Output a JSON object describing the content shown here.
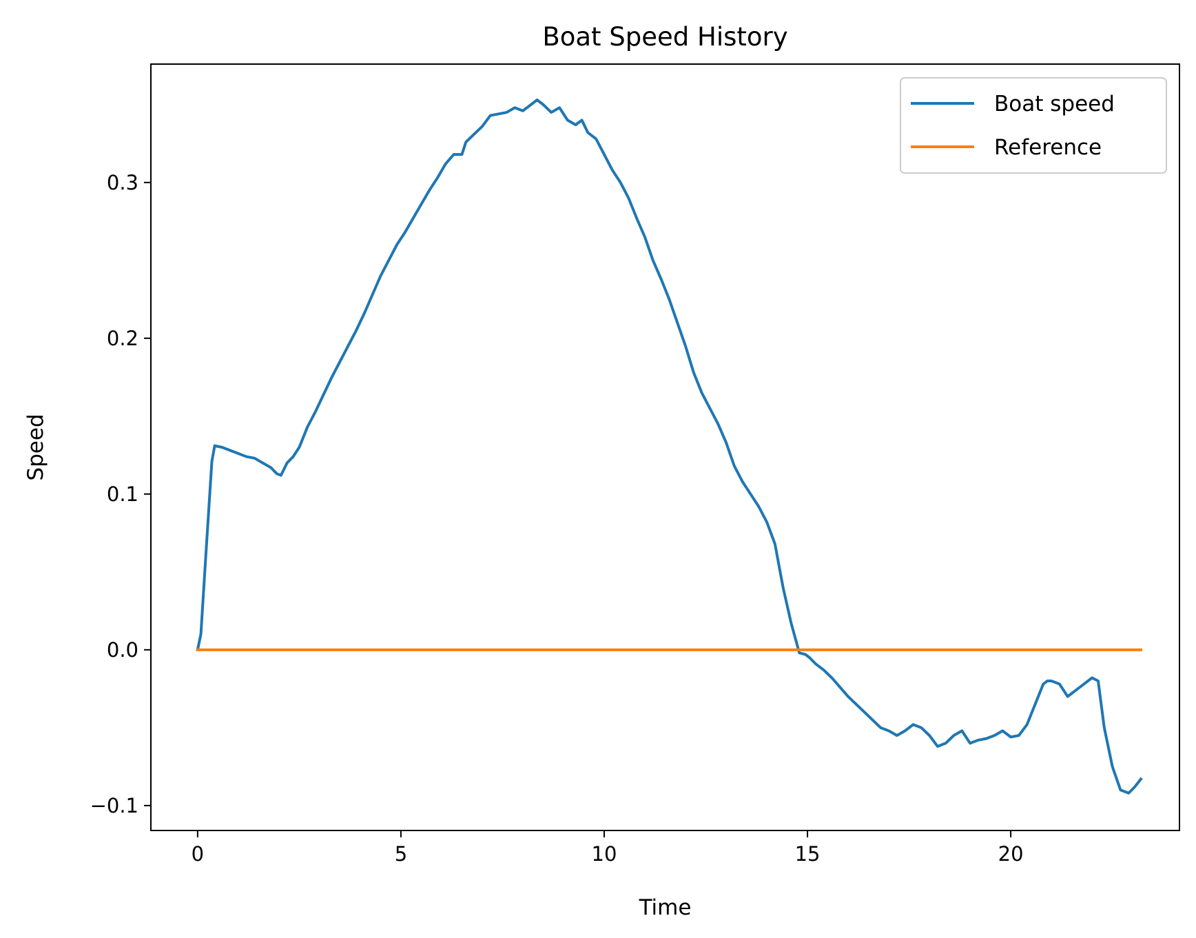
{
  "chart_data": {
    "type": "line",
    "title": "Boat Speed History",
    "xlabel": "Time",
    "ylabel": "Speed",
    "xlim": [
      -1.15,
      24.15
    ],
    "ylim": [
      -0.116,
      0.376
    ],
    "x_ticks": [
      0,
      5,
      10,
      15,
      20
    ],
    "x_tick_labels": [
      "0",
      "5",
      "10",
      "15",
      "20"
    ],
    "y_ticks": [
      -0.1,
      0.0,
      0.1,
      0.2,
      0.3
    ],
    "y_tick_labels": [
      "−0.1",
      "0.0",
      "0.1",
      "0.2",
      "0.3"
    ],
    "grid": false,
    "legend_position": "top-right",
    "series": [
      {
        "name": "Boat speed",
        "color": "#1f77b4",
        "x": [
          0,
          0.08,
          0.2,
          0.35,
          0.42,
          0.6,
          0.8,
          1.0,
          1.2,
          1.4,
          1.6,
          1.8,
          1.95,
          2.05,
          2.2,
          2.35,
          2.5,
          2.7,
          2.9,
          3.1,
          3.3,
          3.5,
          3.7,
          3.9,
          4.1,
          4.3,
          4.5,
          4.7,
          4.9,
          5.1,
          5.3,
          5.5,
          5.7,
          5.9,
          6.1,
          6.3,
          6.5,
          6.6,
          6.8,
          7.0,
          7.2,
          7.4,
          7.6,
          7.8,
          8.0,
          8.2,
          8.35,
          8.5,
          8.7,
          8.9,
          9.1,
          9.3,
          9.45,
          9.6,
          9.8,
          10.0,
          10.2,
          10.4,
          10.6,
          10.8,
          11.0,
          11.2,
          11.4,
          11.6,
          11.8,
          12.0,
          12.2,
          12.4,
          12.6,
          12.8,
          13.0,
          13.2,
          13.4,
          13.6,
          13.8,
          14.0,
          14.2,
          14.4,
          14.6,
          14.8,
          14.95,
          15.05,
          15.2,
          15.4,
          15.6,
          15.8,
          16.0,
          16.2,
          16.4,
          16.6,
          16.8,
          17.0,
          17.2,
          17.4,
          17.6,
          17.8,
          18.0,
          18.2,
          18.4,
          18.6,
          18.8,
          19.0,
          19.2,
          19.4,
          19.6,
          19.8,
          20.0,
          20.2,
          20.4,
          20.6,
          20.8,
          20.9,
          21.0,
          21.2,
          21.4,
          21.6,
          21.8,
          22.0,
          22.15,
          22.3,
          22.5,
          22.7,
          22.9,
          23.05,
          23.2
        ],
        "values": [
          0.0,
          0.01,
          0.06,
          0.121,
          0.131,
          0.13,
          0.128,
          0.126,
          0.124,
          0.123,
          0.12,
          0.117,
          0.113,
          0.112,
          0.12,
          0.124,
          0.13,
          0.143,
          0.153,
          0.164,
          0.175,
          0.185,
          0.195,
          0.205,
          0.216,
          0.228,
          0.24,
          0.25,
          0.26,
          0.268,
          0.277,
          0.286,
          0.295,
          0.303,
          0.312,
          0.318,
          0.318,
          0.326,
          0.331,
          0.336,
          0.343,
          0.344,
          0.345,
          0.348,
          0.346,
          0.35,
          0.353,
          0.35,
          0.345,
          0.348,
          0.34,
          0.337,
          0.34,
          0.332,
          0.328,
          0.318,
          0.308,
          0.3,
          0.29,
          0.277,
          0.265,
          0.25,
          0.238,
          0.225,
          0.21,
          0.195,
          0.178,
          0.165,
          0.155,
          0.145,
          0.133,
          0.118,
          0.108,
          0.1,
          0.092,
          0.082,
          0.068,
          0.04,
          0.017,
          -0.002,
          -0.003,
          -0.005,
          -0.009,
          -0.013,
          -0.018,
          -0.024,
          -0.03,
          -0.035,
          -0.04,
          -0.045,
          -0.05,
          -0.052,
          -0.055,
          -0.052,
          -0.048,
          -0.05,
          -0.055,
          -0.062,
          -0.06,
          -0.055,
          -0.052,
          -0.06,
          -0.058,
          -0.057,
          -0.055,
          -0.052,
          -0.056,
          -0.055,
          -0.048,
          -0.035,
          -0.022,
          -0.02,
          -0.02,
          -0.022,
          -0.03,
          -0.026,
          -0.022,
          -0.018,
          -0.02,
          -0.05,
          -0.075,
          -0.09,
          -0.092,
          -0.088,
          -0.083
        ]
      },
      {
        "name": "Reference",
        "color": "#ff7f0e",
        "x": [
          0,
          23.2
        ],
        "values": [
          0.0,
          0.0
        ]
      }
    ]
  }
}
